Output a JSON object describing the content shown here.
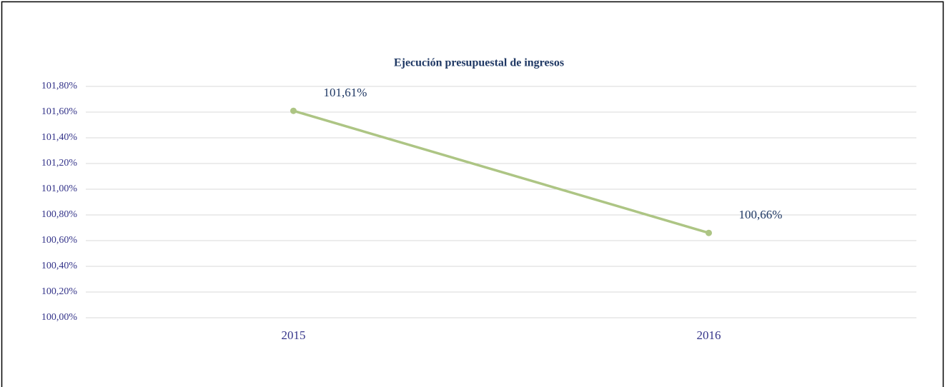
{
  "chart_data": {
    "type": "line",
    "title": "Ejecución presupuestal de ingresos",
    "categories": [
      "2015",
      "2016"
    ],
    "series": [
      {
        "name": "Ejecución presupuestal de ingresos",
        "color": "#adc584",
        "values": [
          101.61,
          100.66
        ],
        "value_labels": [
          "101,61%",
          "100,66%"
        ]
      }
    ],
    "ylim": [
      100.0,
      101.8
    ],
    "yticks": [
      {
        "value": 100.0,
        "label": "100,00%"
      },
      {
        "value": 100.2,
        "label": "100,20%"
      },
      {
        "value": 100.4,
        "label": "100,40%"
      },
      {
        "value": 100.6,
        "label": "100,60%"
      },
      {
        "value": 100.8,
        "label": "100,80%"
      },
      {
        "value": 101.0,
        "label": "101,00%"
      },
      {
        "value": 101.2,
        "label": "101,20%"
      },
      {
        "value": 101.4,
        "label": "101,40%"
      },
      {
        "value": 101.6,
        "label": "101,60%"
      },
      {
        "value": 101.8,
        "label": "101,80%"
      }
    ],
    "grid": true
  }
}
